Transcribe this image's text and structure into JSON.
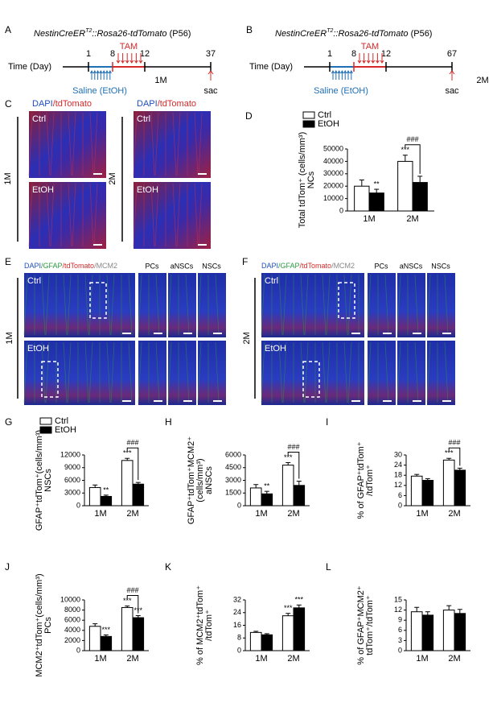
{
  "panels": {
    "A": {
      "letter": "A",
      "title": [
        "NestinCreER",
        "T2",
        "::Rosa26-tdTomato",
        " (P56)"
      ],
      "time_label": "Time (Day)",
      "days": [
        "1",
        "8",
        "12",
        "37"
      ],
      "treatment": "TAM",
      "period": "1M",
      "vehicle": "Saline (EtOH)",
      "end": "sac"
    },
    "B": {
      "letter": "B",
      "title": [
        "NestinCreER",
        "T2",
        "::Rosa26-tdTomato",
        " (P56)"
      ],
      "time_label": "Time (Day)",
      "days": [
        "1",
        "8",
        "12",
        "67"
      ],
      "treatment": "TAM",
      "period": "2M",
      "vehicle": "Saline (EtOH)",
      "end": "sac"
    },
    "C": {
      "letter": "C",
      "stain": [
        "DAPI",
        "/tdTomato"
      ],
      "rows": [
        "Ctrl",
        "EtOH"
      ],
      "groups": [
        "1M",
        "2M"
      ]
    },
    "E": {
      "letter": "E",
      "stain": [
        "DAPI",
        "/GFAP",
        "/tdTomato",
        "/MCM2"
      ],
      "insets": [
        "PCs",
        "aNSCs",
        "NSCs"
      ],
      "rows": [
        "Ctrl",
        "EtOH"
      ],
      "group": "1M"
    },
    "F": {
      "letter": "F",
      "stain": [
        "DAPI",
        "/GFAP",
        "/tdTomato",
        "/MCM2"
      ],
      "insets": [
        "PCs",
        "aNSCs",
        "NSCs"
      ],
      "rows": [
        "Ctrl",
        "EtOH"
      ],
      "group": "2M"
    }
  },
  "chart_data": [
    {
      "type": "bar",
      "letter": "D",
      "ylabel": [
        "Total tdTom⁺ (cells/mm³)",
        "NCs"
      ],
      "categories": [
        "1M",
        "2M"
      ],
      "ylim": [
        0,
        50000
      ],
      "yticks": [
        0,
        10000,
        20000,
        30000,
        40000,
        50000
      ],
      "legend": true,
      "series": [
        {
          "name": "Ctrl",
          "color": "#ffffff",
          "values": [
            20000,
            40000
          ],
          "errors": [
            5000,
            5000
          ],
          "significance": [
            null,
            "***"
          ]
        },
        {
          "name": "EtOH",
          "color": "#000000",
          "values": [
            14500,
            23000
          ],
          "errors": [
            3000,
            5000
          ],
          "significance": [
            "**",
            null
          ]
        }
      ],
      "bracket": "###"
    },
    {
      "type": "bar",
      "letter": "G",
      "ylabel": [
        "GFAP⁺tdTom⁺(cells/mm³)",
        "NSCs"
      ],
      "categories": [
        "1M",
        "2M"
      ],
      "ylim": [
        0,
        12000
      ],
      "yticks": [
        0,
        3000,
        6000,
        9000,
        12000
      ],
      "legend": true,
      "series": [
        {
          "name": "Ctrl",
          "color": "#ffffff",
          "values": [
            4300,
            10700
          ],
          "errors": [
            600,
            500
          ],
          "significance": [
            null,
            "***"
          ]
        },
        {
          "name": "EtOH",
          "color": "#000000",
          "values": [
            2200,
            5100
          ],
          "errors": [
            300,
            400
          ],
          "significance": [
            "**",
            null
          ]
        }
      ],
      "bracket": "###"
    },
    {
      "type": "bar",
      "letter": "H",
      "ylabel": [
        "GFAP⁺tdTom⁺MCM2⁺",
        "(cells/mm³)",
        "aNSCs"
      ],
      "categories": [
        "1M",
        "2M"
      ],
      "ylim": [
        0,
        6000
      ],
      "yticks": [
        0,
        1500,
        3000,
        4500,
        6000
      ],
      "legend": false,
      "series": [
        {
          "name": "Ctrl",
          "color": "#ffffff",
          "values": [
            2100,
            4800
          ],
          "errors": [
            400,
            300
          ],
          "significance": [
            null,
            "***"
          ]
        },
        {
          "name": "EtOH",
          "color": "#000000",
          "values": [
            1400,
            2400
          ],
          "errors": [
            300,
            500
          ],
          "significance": [
            "**",
            null
          ]
        }
      ],
      "bracket": "###"
    },
    {
      "type": "bar",
      "letter": "I",
      "ylabel": [
        "% of GFAP⁺tdTom⁺",
        "/tdTom⁺"
      ],
      "categories": [
        "1M",
        "2M"
      ],
      "ylim": [
        0,
        30
      ],
      "yticks": [
        0,
        6,
        12,
        18,
        24,
        30
      ],
      "legend": false,
      "series": [
        {
          "name": "Ctrl",
          "color": "#ffffff",
          "values": [
            17.5,
            27
          ],
          "errors": [
            1,
            1
          ],
          "significance": [
            null,
            "***"
          ]
        },
        {
          "name": "EtOH",
          "color": "#000000",
          "values": [
            15,
            21
          ],
          "errors": [
            1,
            1.2
          ],
          "significance": [
            null,
            null
          ]
        }
      ],
      "bracket": "###"
    },
    {
      "type": "bar",
      "letter": "J",
      "ylabel": [
        "MCM2⁺tdTom⁺(cells/mm³)",
        "PCs"
      ],
      "categories": [
        "1M",
        "2M"
      ],
      "ylim": [
        0,
        10000
      ],
      "yticks": [
        0,
        2000,
        4000,
        6000,
        8000,
        10000
      ],
      "legend": false,
      "series": [
        {
          "name": "Ctrl",
          "color": "#ffffff",
          "values": [
            4800,
            8500
          ],
          "errors": [
            500,
            300
          ],
          "significance": [
            null,
            "***"
          ]
        },
        {
          "name": "EtOH",
          "color": "#000000",
          "values": [
            2800,
            6500
          ],
          "errors": [
            300,
            400
          ],
          "significance": [
            "***",
            "***"
          ]
        }
      ],
      "bracket": "###"
    },
    {
      "type": "bar",
      "letter": "K",
      "ylabel": [
        "% of MCM2⁺tdTom⁺",
        "/tdTom⁺"
      ],
      "categories": [
        "1M",
        "2M"
      ],
      "ylim": [
        0,
        32
      ],
      "yticks": [
        0,
        8,
        16,
        24,
        32
      ],
      "legend": false,
      "series": [
        {
          "name": "Ctrl",
          "color": "#ffffff",
          "values": [
            11.5,
            22
          ],
          "errors": [
            0.7,
            1.5
          ],
          "significance": [
            null,
            "***"
          ]
        },
        {
          "name": "EtOH",
          "color": "#000000",
          "values": [
            10,
            27
          ],
          "errors": [
            0.7,
            1.8
          ],
          "significance": [
            null,
            "***"
          ]
        }
      ]
    },
    {
      "type": "bar",
      "letter": "L",
      "ylabel": [
        "% of GFAP⁺MCM2⁺",
        "tdTom⁺/tdTom⁺"
      ],
      "categories": [
        "1M",
        "2M"
      ],
      "ylim": [
        0,
        15
      ],
      "yticks": [
        0,
        3,
        6,
        9,
        12,
        15
      ],
      "legend": false,
      "series": [
        {
          "name": "Ctrl",
          "color": "#ffffff",
          "values": [
            11.5,
            12
          ],
          "errors": [
            1.3,
            1.3
          ],
          "significance": [
            null,
            null
          ]
        },
        {
          "name": "EtOH",
          "color": "#000000",
          "values": [
            10.5,
            11
          ],
          "errors": [
            1,
            1.2
          ],
          "significance": [
            null,
            null
          ]
        }
      ]
    }
  ]
}
